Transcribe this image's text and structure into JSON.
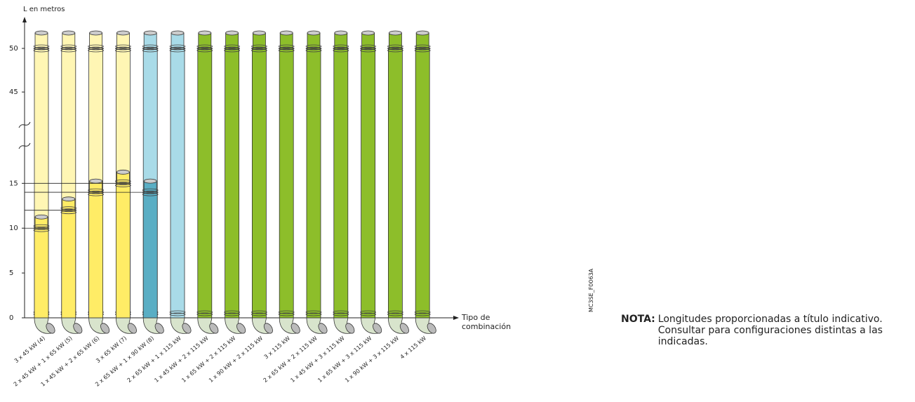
{
  "chart_data": {
    "type": "pipe",
    "y_label": "L en metros",
    "x_label": "Tipo de combinación",
    "categories": [
      "3 x 45 kW (4)",
      "2 x 45 kW + 1 x 65 kW (5)",
      "1 x 45 kW + 2 x 65 kW (6)",
      "3 x 65 kW (7)",
      "2 x 65 kW + 1 x 90 kW (8)",
      "2 x 65 kW + 1 x 115 kW",
      "1 x 45 kW + 2 x 115 kW",
      "1 x 65 kW + 2 x 115 kW",
      "1 x 90 kW + 2 x 115 kW",
      "3 x 115 kW",
      "2 x 65 kW + 2 x 115 kW",
      "1 x 45 kW + 3 x 115 kW",
      "1 x 65 kW + 3 x 115 kW",
      "1 x 90 kW + 3 x 115 kW",
      "4 x 115 kW"
    ],
    "series": [
      {
        "values": [
          50,
          50,
          50,
          50,
          50,
          50,
          50,
          50,
          50,
          50,
          50,
          50,
          50,
          50,
          50
        ],
        "colors": [
          "#fff6b4",
          "#fff6b4",
          "#fff6b4",
          "#fff6b4",
          "#a9dbe8",
          "#a9dbe8",
          "#8dbe2a",
          "#8dbe2a",
          "#8dbe2a",
          "#8dbe2a",
          "#8dbe2a",
          "#8dbe2a",
          "#8dbe2a",
          "#8dbe2a",
          "#8dbe2a"
        ]
      },
      {
        "values": [
          10,
          12,
          14,
          15,
          14,
          null,
          null,
          null,
          null,
          null,
          null,
          null,
          null,
          null,
          null
        ],
        "colors": [
          "#ffec66",
          "#ffec66",
          "#ffec66",
          "#ffec66",
          "#5aaec4",
          null,
          null,
          null,
          null,
          null,
          null,
          null,
          null,
          null,
          null
        ]
      }
    ],
    "ylim": [
      0,
      50
    ],
    "yticks": [
      0,
      5,
      10,
      15,
      45,
      50
    ],
    "axis_break": [
      18,
      43
    ],
    "code": "MC3SE_F0063A",
    "note_label": "NOTA:",
    "note": "Longitudes proporcionadas a título indicativo. Consultar para configuraciones distintas a las indicadas."
  }
}
